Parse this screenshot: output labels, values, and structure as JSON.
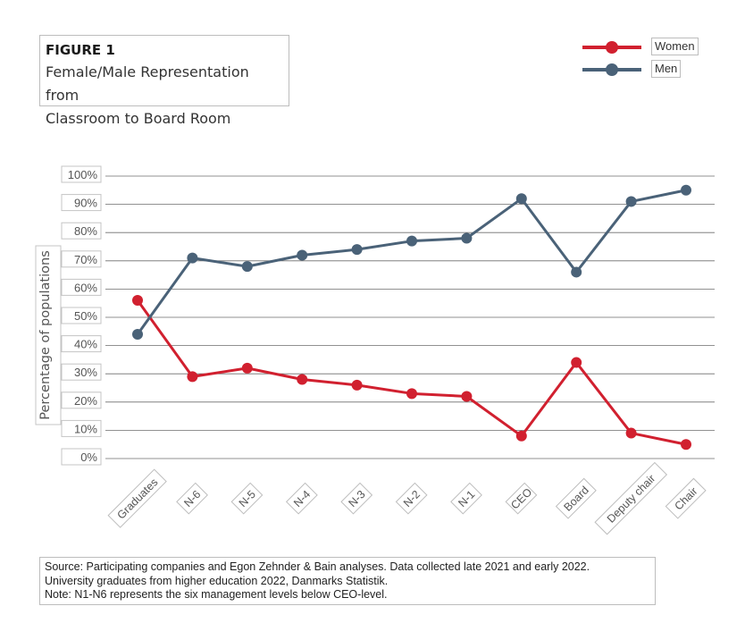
{
  "figure": {
    "label": "FIGURE 1",
    "title": "Female/Male Representation from\nClassroom to Board Room"
  },
  "legend": [
    {
      "name": "Women",
      "color": "#d1202f"
    },
    {
      "name": "Men",
      "color": "#4a6278"
    }
  ],
  "chart_data": {
    "type": "line",
    "title": "Female/Male Representation from Classroom to Board Room",
    "xlabel": "",
    "ylabel": "Percentage of populations",
    "ylim": [
      0,
      100
    ],
    "yticks": [
      "0%",
      "10%",
      "20%",
      "30%",
      "40%",
      "50%",
      "60%",
      "70%",
      "80%",
      "90%",
      "100%"
    ],
    "categories": [
      "Graduates",
      "N-6",
      "N-5",
      "N-4",
      "N-3",
      "N-2",
      "N-1",
      "CEO",
      "Board",
      "Deputy chair",
      "Chair"
    ],
    "series": [
      {
        "name": "Women",
        "color": "#d1202f",
        "values": [
          56,
          29,
          32,
          28,
          26,
          23,
          22,
          8,
          34,
          9,
          5
        ]
      },
      {
        "name": "Men",
        "color": "#4a6278",
        "values": [
          44,
          71,
          68,
          72,
          74,
          77,
          78,
          92,
          66,
          91,
          95
        ]
      }
    ],
    "grid": true,
    "legend_position": "top-right"
  },
  "source": {
    "lines": [
      "Source: Participating companies and Egon Zehnder & Bain analyses. Data collected late 2021 and early 2022.",
      "University graduates from higher education 2022, Danmarks Statistik.",
      "Note: N1-N6 represents the six management levels below CEO-level."
    ]
  }
}
